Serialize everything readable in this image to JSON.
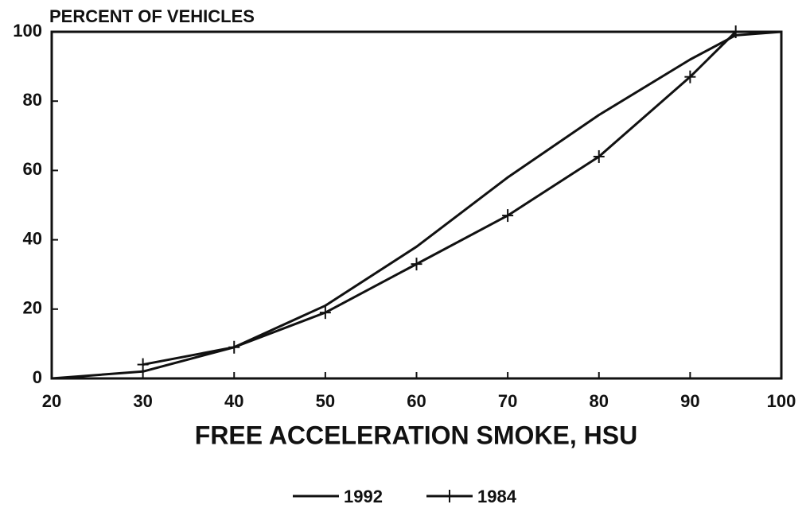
{
  "chart_data": {
    "type": "line",
    "title": "PERCENT OF VEHICLES",
    "x_label": "FREE ACCELERATION SMOKE, HSU",
    "xlim": [
      20,
      100
    ],
    "xticks": [
      20,
      30,
      40,
      50,
      60,
      70,
      80,
      90,
      100
    ],
    "ylim": [
      0,
      100
    ],
    "yticks": [
      0,
      20,
      40,
      60,
      80,
      100
    ],
    "series": [
      {
        "name": "1992",
        "color": "#111111",
        "marker": "none",
        "x": [
          20,
          30,
          40,
          50,
          60,
          70,
          80,
          90,
          95,
          100
        ],
        "values": [
          0,
          2,
          9,
          21,
          38,
          58,
          76,
          92,
          99,
          100
        ]
      },
      {
        "name": "1984",
        "color": "#111111",
        "marker": "plus",
        "x": [
          30,
          40,
          50,
          60,
          70,
          80,
          90,
          95
        ],
        "values": [
          4,
          9,
          19,
          33,
          47,
          64,
          87,
          100
        ]
      }
    ]
  }
}
